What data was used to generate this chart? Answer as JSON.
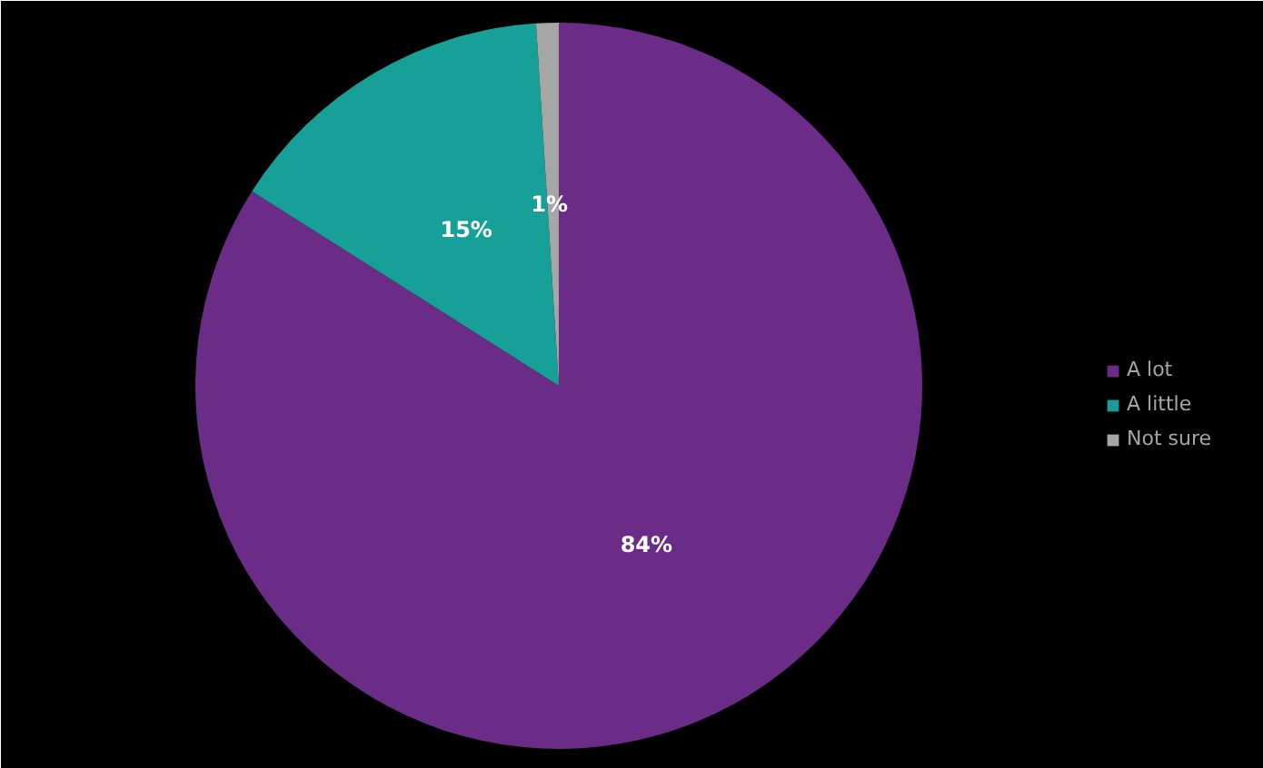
{
  "chart_data": {
    "type": "pie",
    "categories": [
      "A lot",
      "A little",
      "Not sure"
    ],
    "values": [
      84,
      15,
      1
    ],
    "colors": [
      "#6a2c87",
      "#17a098",
      "#a6a6a6"
    ],
    "value_labels": [
      "84%",
      "15%",
      "1%"
    ],
    "legend": "right"
  }
}
